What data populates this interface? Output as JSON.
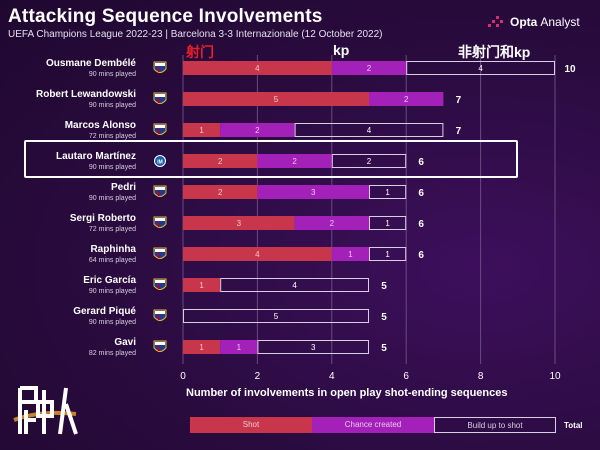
{
  "header": {
    "title": "Attacking Sequence Involvements",
    "subtitle": "UEFA Champions League 2022-23 | Barcelona 3-3 Internazionale (12 October 2022)",
    "brand_bold": "Opta",
    "brand_light": "Analyst"
  },
  "annotations": {
    "shot_cn": "射门",
    "kp": "kp",
    "build_cn": "非射门和kp"
  },
  "colors": {
    "shot": "#c8364b",
    "chance": "#a321b8",
    "build_border": "#d8d0e0",
    "background": "#2a0b3f",
    "barca_blue": "#1c3c8c",
    "barca_red": "#a50044",
    "inter_blue": "#1d5ea8"
  },
  "highlighted_player": "Lautaro Martínez",
  "chart_data": {
    "type": "bar",
    "orientation": "horizontal",
    "stacked": true,
    "xlabel": "Number of involvements in open play shot-ending sequences",
    "xlim": [
      0,
      10
    ],
    "xticks": [
      0,
      2,
      4,
      6,
      8,
      10
    ],
    "grid": true,
    "legend_position": "bottom",
    "categories": [
      {
        "name": "Ousmane Dembélé",
        "note": "90 mins played",
        "team": "Barcelona"
      },
      {
        "name": "Robert Lewandowski",
        "note": "90 mins played",
        "team": "Barcelona"
      },
      {
        "name": "Marcos Alonso",
        "note": "72 mins played",
        "team": "Barcelona"
      },
      {
        "name": "Lautaro Martínez",
        "note": "90 mins played",
        "team": "Internazionale"
      },
      {
        "name": "Pedri",
        "note": "90 mins played",
        "team": "Barcelona"
      },
      {
        "name": "Sergi Roberto",
        "note": "72 mins played",
        "team": "Barcelona"
      },
      {
        "name": "Raphinha",
        "note": "64 mins played",
        "team": "Barcelona"
      },
      {
        "name": "Eric García",
        "note": "90 mins played",
        "team": "Barcelona"
      },
      {
        "name": "Gerard Piqué",
        "note": "90 mins played",
        "team": "Barcelona"
      },
      {
        "name": "Gavi",
        "note": "82 mins played",
        "team": "Barcelona"
      }
    ],
    "series": [
      {
        "name": "Shot",
        "values": [
          4,
          5,
          1,
          2,
          2,
          3,
          4,
          1,
          0,
          1
        ]
      },
      {
        "name": "Chance created",
        "values": [
          2,
          2,
          2,
          2,
          3,
          2,
          1,
          0,
          0,
          1
        ]
      },
      {
        "name": "Build up to shot",
        "values": [
          4,
          0,
          4,
          2,
          1,
          1,
          1,
          4,
          5,
          3
        ]
      }
    ],
    "totals": [
      10,
      7,
      7,
      6,
      6,
      6,
      6,
      5,
      5,
      5
    ],
    "total_label": "Total"
  }
}
